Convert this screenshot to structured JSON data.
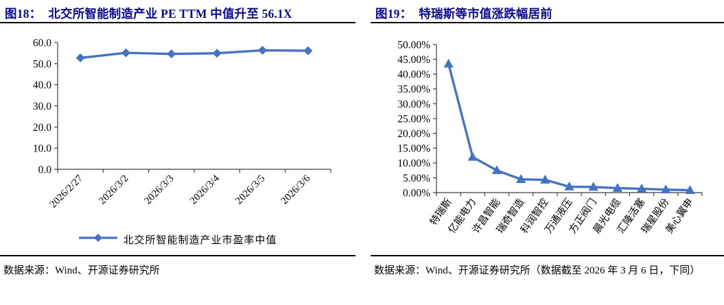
{
  "colors": {
    "accent": "#4472C4",
    "title_text": "#0A0A8F",
    "axis_line": "#3d3d3d"
  },
  "panels": {
    "left": {
      "fig_label": "图18：",
      "title": "北交所智能制造产业 PE TTM 中值升至 56.1X",
      "source": "数据来源：Wind、开源证券研究所"
    },
    "right": {
      "fig_label": "图19：",
      "title": "特瑞斯等市值涨跌幅居前",
      "source": "数据来源：Wind、开源证券研究所（数据截至 2026 年 3 月 6 日，下同）"
    }
  },
  "chart_data": [
    {
      "id": "pe-ttm-median",
      "type": "line",
      "marker": "diamond",
      "series_name": "北交所智能制造产业市盈率中值",
      "categories": [
        "2026/2/27",
        "2026/3/2",
        "2026/3/3",
        "2026/3/4",
        "2026/3/5",
        "2026/3/6"
      ],
      "values": [
        52.7,
        55.1,
        54.6,
        54.9,
        56.3,
        56.1
      ],
      "ylim": [
        0,
        60
      ],
      "ytick_step": 10,
      "ytick_decimals": 1,
      "ytick_suffix": "",
      "grid": false,
      "legend_position": "bottom"
    },
    {
      "id": "market-cap-change",
      "type": "line",
      "marker": "triangle",
      "series_name": "市值涨跌幅",
      "categories": [
        "特瑞斯",
        "亿能电力",
        "许昌智能",
        "瑞奇智造",
        "科润智控",
        "万通液压",
        "方正阀门",
        "晨光电缆",
        "汇隆活塞",
        "瑞星股份",
        "美心翼申"
      ],
      "values": [
        43.5,
        12.0,
        7.5,
        4.5,
        4.3,
        2.0,
        1.9,
        1.5,
        1.3,
        1.0,
        0.8
      ],
      "ylim": [
        0,
        50
      ],
      "ytick_step": 5,
      "ytick_decimals": 2,
      "ytick_suffix": "%",
      "grid": false,
      "legend_position": "none"
    }
  ]
}
